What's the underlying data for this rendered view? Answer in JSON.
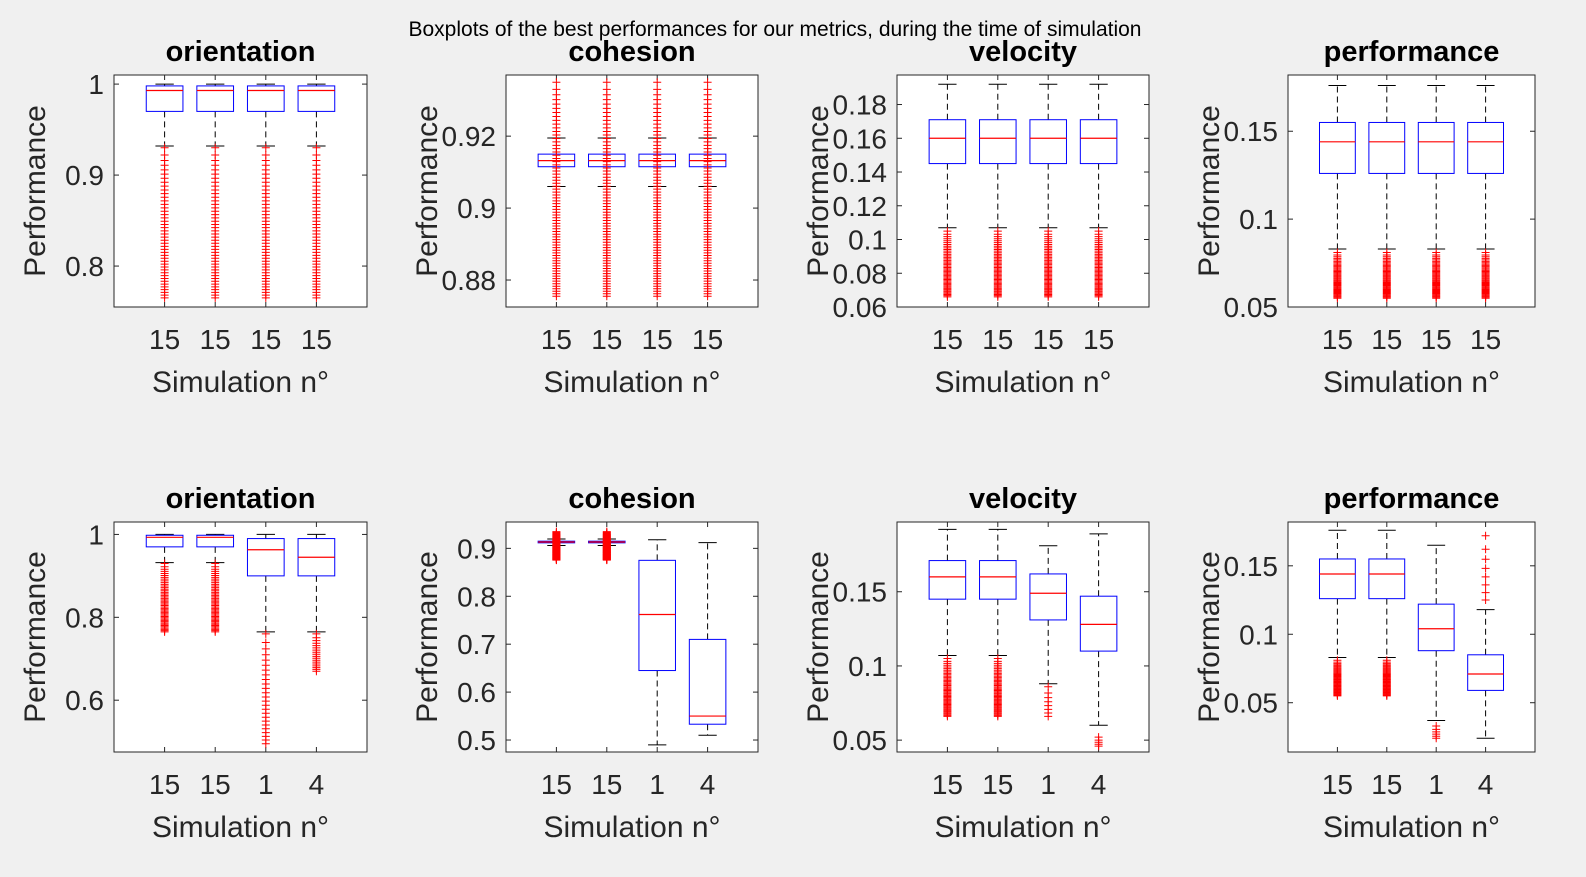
{
  "figure": {
    "suptitle": "Boxplots of the best performances for our metrics, during the time of simulation"
  },
  "colors": {
    "box": "#0000ff",
    "median": "#ff0000",
    "whisker": "#000000",
    "outlier": "#ff0000"
  },
  "chart_data": [
    {
      "type": "box",
      "title": "orientation",
      "xlabel": "Simulation n°",
      "ylabel": "Performance",
      "ylim": [
        0.755,
        1.01
      ],
      "yticks": [
        0.8,
        0.9,
        1
      ],
      "ytick_labels": [
        "0.8",
        "0.9",
        "1"
      ],
      "categories": [
        "15",
        "15",
        "15",
        "15"
      ],
      "boxes": [
        {
          "q1": 0.97,
          "median": 0.993,
          "q3": 0.998,
          "whisker_low": 0.932,
          "whisker_high": 1.0,
          "outlier_min": 0.765,
          "outlier_max": 0.93,
          "outlier_count": 45
        },
        {
          "q1": 0.97,
          "median": 0.993,
          "q3": 0.998,
          "whisker_low": 0.932,
          "whisker_high": 1.0,
          "outlier_min": 0.765,
          "outlier_max": 0.93,
          "outlier_count": 45
        },
        {
          "q1": 0.97,
          "median": 0.993,
          "q3": 0.998,
          "whisker_low": 0.932,
          "whisker_high": 1.0,
          "outlier_min": 0.765,
          "outlier_max": 0.93,
          "outlier_count": 45
        },
        {
          "q1": 0.97,
          "median": 0.993,
          "q3": 0.998,
          "whisker_low": 0.932,
          "whisker_high": 1.0,
          "outlier_min": 0.765,
          "outlier_max": 0.93,
          "outlier_count": 45
        }
      ]
    },
    {
      "type": "box",
      "title": "cohesion",
      "xlabel": "Simulation n°",
      "ylabel": "Performance",
      "ylim": [
        0.8725,
        0.937
      ],
      "yticks": [
        0.88,
        0.9,
        0.92
      ],
      "ytick_labels": [
        "0.88",
        "0.9",
        "0.92"
      ],
      "categories": [
        "15",
        "15",
        "15",
        "15"
      ],
      "boxes": [
        {
          "q1": 0.9115,
          "median": 0.9132,
          "q3": 0.915,
          "whisker_low": 0.906,
          "whisker_high": 0.9195,
          "outlier_min": 0.8755,
          "outlier_max": 0.935,
          "outlier_count": 70
        },
        {
          "q1": 0.9115,
          "median": 0.9132,
          "q3": 0.915,
          "whisker_low": 0.906,
          "whisker_high": 0.9195,
          "outlier_min": 0.8755,
          "outlier_max": 0.935,
          "outlier_count": 70
        },
        {
          "q1": 0.9115,
          "median": 0.9132,
          "q3": 0.915,
          "whisker_low": 0.906,
          "whisker_high": 0.9195,
          "outlier_min": 0.8755,
          "outlier_max": 0.935,
          "outlier_count": 70
        },
        {
          "q1": 0.9115,
          "median": 0.9132,
          "q3": 0.915,
          "whisker_low": 0.906,
          "whisker_high": 0.9195,
          "outlier_min": 0.8755,
          "outlier_max": 0.935,
          "outlier_count": 70
        }
      ]
    },
    {
      "type": "box",
      "title": "velocity",
      "xlabel": "Simulation n°",
      "ylabel": "Performance",
      "ylim": [
        0.06,
        0.1975
      ],
      "yticks": [
        0.06,
        0.08,
        0.1,
        0.12,
        0.14,
        0.16,
        0.18
      ],
      "ytick_labels": [
        "0.06",
        "0.08",
        "0.1",
        "0.12",
        "0.14",
        "0.16",
        "0.18"
      ],
      "categories": [
        "15",
        "15",
        "15",
        "15"
      ],
      "boxes": [
        {
          "q1": 0.145,
          "median": 0.16,
          "q3": 0.171,
          "whisker_low": 0.107,
          "whisker_high": 0.192,
          "outlier_min": 0.066,
          "outlier_max": 0.105,
          "outlier_count": 45
        },
        {
          "q1": 0.145,
          "median": 0.16,
          "q3": 0.171,
          "whisker_low": 0.107,
          "whisker_high": 0.192,
          "outlier_min": 0.066,
          "outlier_max": 0.105,
          "outlier_count": 45
        },
        {
          "q1": 0.145,
          "median": 0.16,
          "q3": 0.171,
          "whisker_low": 0.107,
          "whisker_high": 0.192,
          "outlier_min": 0.066,
          "outlier_max": 0.105,
          "outlier_count": 45
        },
        {
          "q1": 0.145,
          "median": 0.16,
          "q3": 0.171,
          "whisker_low": 0.107,
          "whisker_high": 0.192,
          "outlier_min": 0.066,
          "outlier_max": 0.105,
          "outlier_count": 45
        }
      ]
    },
    {
      "type": "box",
      "title": "performance",
      "xlabel": "Simulation n°",
      "ylabel": "Performance",
      "ylim": [
        0.05,
        0.182
      ],
      "yticks": [
        0.05,
        0.1,
        0.15
      ],
      "ytick_labels": [
        "0.05",
        "0.1",
        "0.15"
      ],
      "categories": [
        "15",
        "15",
        "15",
        "15"
      ],
      "boxes": [
        {
          "q1": 0.126,
          "median": 0.144,
          "q3": 0.155,
          "whisker_low": 0.083,
          "whisker_high": 0.176,
          "outlier_min": 0.055,
          "outlier_max": 0.081,
          "outlier_count": 40
        },
        {
          "q1": 0.126,
          "median": 0.144,
          "q3": 0.155,
          "whisker_low": 0.083,
          "whisker_high": 0.176,
          "outlier_min": 0.055,
          "outlier_max": 0.081,
          "outlier_count": 40
        },
        {
          "q1": 0.126,
          "median": 0.144,
          "q3": 0.155,
          "whisker_low": 0.083,
          "whisker_high": 0.176,
          "outlier_min": 0.055,
          "outlier_max": 0.081,
          "outlier_count": 40
        },
        {
          "q1": 0.126,
          "median": 0.144,
          "q3": 0.155,
          "whisker_low": 0.083,
          "whisker_high": 0.176,
          "outlier_min": 0.055,
          "outlier_max": 0.081,
          "outlier_count": 40
        }
      ]
    },
    {
      "type": "box",
      "title": "orientation",
      "xlabel": "Simulation n°",
      "ylabel": "Performance",
      "ylim": [
        0.475,
        1.03
      ],
      "yticks": [
        0.6,
        0.8,
        1
      ],
      "ytick_labels": [
        "0.6",
        "0.8",
        "1"
      ],
      "categories": [
        "15",
        "15",
        "1",
        "4"
      ],
      "boxes": [
        {
          "q1": 0.97,
          "median": 0.993,
          "q3": 0.998,
          "whisker_low": 0.932,
          "whisker_high": 1.0,
          "outlier_min": 0.765,
          "outlier_max": 0.93,
          "outlier_count": 45
        },
        {
          "q1": 0.97,
          "median": 0.993,
          "q3": 0.998,
          "whisker_low": 0.932,
          "whisker_high": 1.0,
          "outlier_min": 0.765,
          "outlier_max": 0.93,
          "outlier_count": 45
        },
        {
          "q1": 0.9,
          "median": 0.963,
          "q3": 0.99,
          "whisker_low": 0.765,
          "whisker_high": 1.0,
          "outlier_min": 0.495,
          "outlier_max": 0.76,
          "outlier_count": 25
        },
        {
          "q1": 0.9,
          "median": 0.945,
          "q3": 0.99,
          "whisker_low": 0.765,
          "whisker_high": 1.0,
          "outlier_min": 0.67,
          "outlier_max": 0.76,
          "outlier_count": 18
        }
      ]
    },
    {
      "type": "box",
      "title": "cohesion",
      "xlabel": "Simulation n°",
      "ylabel": "Performance",
      "ylim": [
        0.475,
        0.955
      ],
      "yticks": [
        0.5,
        0.6,
        0.7,
        0.8,
        0.9
      ],
      "ytick_labels": [
        "0.5",
        "0.6",
        "0.7",
        "0.8",
        "0.9"
      ],
      "categories": [
        "15",
        "15",
        "1",
        "4"
      ],
      "boxes": [
        {
          "q1": 0.9115,
          "median": 0.9132,
          "q3": 0.915,
          "whisker_low": 0.906,
          "whisker_high": 0.9195,
          "outlier_min": 0.8755,
          "outlier_max": 0.935,
          "outlier_count": 70
        },
        {
          "q1": 0.9115,
          "median": 0.9132,
          "q3": 0.915,
          "whisker_low": 0.906,
          "whisker_high": 0.9195,
          "outlier_min": 0.8755,
          "outlier_max": 0.935,
          "outlier_count": 70
        },
        {
          "q1": 0.645,
          "median": 0.762,
          "q3": 0.875,
          "whisker_low": 0.49,
          "whisker_high": 0.918,
          "outlier_min": null,
          "outlier_max": null,
          "outlier_count": 0
        },
        {
          "q1": 0.533,
          "median": 0.55,
          "q3": 0.71,
          "whisker_low": 0.51,
          "whisker_high": 0.912,
          "outlier_min": null,
          "outlier_max": null,
          "outlier_count": 0
        }
      ]
    },
    {
      "type": "box",
      "title": "velocity",
      "xlabel": "Simulation n°",
      "ylabel": "Performance",
      "ylim": [
        0.042,
        0.197
      ],
      "yticks": [
        0.05,
        0.1,
        0.15
      ],
      "ytick_labels": [
        "0.05",
        "0.1",
        "0.15"
      ],
      "categories": [
        "15",
        "15",
        "1",
        "4"
      ],
      "boxes": [
        {
          "q1": 0.145,
          "median": 0.16,
          "q3": 0.171,
          "whisker_low": 0.107,
          "whisker_high": 0.192,
          "outlier_min": 0.066,
          "outlier_max": 0.105,
          "outlier_count": 45
        },
        {
          "q1": 0.145,
          "median": 0.16,
          "q3": 0.171,
          "whisker_low": 0.107,
          "whisker_high": 0.192,
          "outlier_min": 0.066,
          "outlier_max": 0.105,
          "outlier_count": 45
        },
        {
          "q1": 0.131,
          "median": 0.149,
          "q3": 0.162,
          "whisker_low": 0.088,
          "whisker_high": 0.181,
          "outlier_min": 0.066,
          "outlier_max": 0.086,
          "outlier_count": 8
        },
        {
          "q1": 0.11,
          "median": 0.128,
          "q3": 0.147,
          "whisker_low": 0.06,
          "whisker_high": 0.189,
          "outlier_min": 0.046,
          "outlier_max": 0.052,
          "outlier_count": 5
        }
      ]
    },
    {
      "type": "box",
      "title": "performance",
      "xlabel": "Simulation n°",
      "ylabel": "Performance",
      "ylim": [
        0.014,
        0.182
      ],
      "yticks": [
        0.05,
        0.1,
        0.15
      ],
      "ytick_labels": [
        "0.05",
        "0.1",
        "0.15"
      ],
      "categories": [
        "15",
        "15",
        "1",
        "4"
      ],
      "boxes": [
        {
          "q1": 0.126,
          "median": 0.144,
          "q3": 0.155,
          "whisker_low": 0.083,
          "whisker_high": 0.176,
          "outlier_min": 0.055,
          "outlier_max": 0.081,
          "outlier_count": 40
        },
        {
          "q1": 0.126,
          "median": 0.144,
          "q3": 0.155,
          "whisker_low": 0.083,
          "whisker_high": 0.176,
          "outlier_min": 0.055,
          "outlier_max": 0.081,
          "outlier_count": 40
        },
        {
          "q1": 0.088,
          "median": 0.104,
          "q3": 0.122,
          "whisker_low": 0.037,
          "whisker_high": 0.165,
          "outlier_min": 0.024,
          "outlier_max": 0.033,
          "outlier_count": 6
        },
        {
          "q1": 0.059,
          "median": 0.071,
          "q3": 0.085,
          "whisker_low": 0.024,
          "whisker_high": 0.118,
          "outlier_min": 0.125,
          "outlier_max": 0.172,
          "outlier_count": 8
        }
      ]
    }
  ]
}
